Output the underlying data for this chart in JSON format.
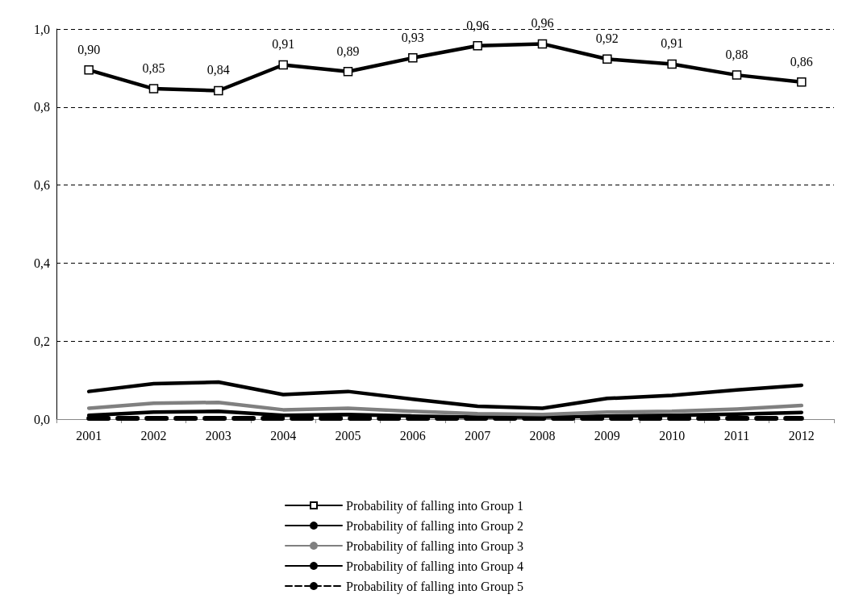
{
  "chart_data": {
    "type": "line",
    "categories": [
      "2001",
      "2002",
      "2003",
      "2004",
      "2005",
      "2006",
      "2007",
      "2008",
      "2009",
      "2010",
      "2011",
      "2012"
    ],
    "ylim": [
      0,
      1
    ],
    "yticks": [
      {
        "value": 0,
        "label": "0,0"
      },
      {
        "value": 0.2,
        "label": "0,2"
      },
      {
        "value": 0.4,
        "label": "0,4"
      },
      {
        "value": 0.6,
        "label": "0,6"
      },
      {
        "value": 0.8,
        "label": "0,8"
      },
      {
        "value": 1,
        "label": "1,0"
      }
    ],
    "grid": "y",
    "legend": "bottom",
    "series": [
      {
        "name": "Probability of falling into Group 1",
        "color": "#000000",
        "marker": "square",
        "values": [
          0.895,
          0.847,
          0.842,
          0.908,
          0.891,
          0.926,
          0.957,
          0.962,
          0.923,
          0.91,
          0.882,
          0.864
        ],
        "value_labels": [
          "0,90",
          "0,85",
          "0,84",
          "0,91",
          "0,89",
          "0,93",
          "0,96",
          "0,96",
          "0,92",
          "0,91",
          "0,88",
          "0,86"
        ]
      },
      {
        "name": "Probability of falling into Group 2",
        "color": "#000000",
        "marker": "none",
        "values": [
          0.071,
          0.091,
          0.095,
          0.063,
          0.071,
          0.051,
          0.033,
          0.028,
          0.053,
          0.061,
          0.075,
          0.087
        ]
      },
      {
        "name": "Probability of falling into Group 3",
        "color": "#808080",
        "marker": "none",
        "values": [
          0.028,
          0.041,
          0.043,
          0.024,
          0.028,
          0.02,
          0.014,
          0.012,
          0.018,
          0.02,
          0.026,
          0.035
        ]
      },
      {
        "name": "Probability of falling into Group 4",
        "color": "#000000",
        "marker": "none",
        "values": [
          0.01,
          0.018,
          0.02,
          0.01,
          0.012,
          0.008,
          0.005,
          0.005,
          0.008,
          0.01,
          0.013,
          0.017
        ]
      },
      {
        "name": "Probability of falling into Group 5",
        "color": "#000000",
        "marker": "none",
        "line_style": "dashed",
        "values": [
          0.002,
          0.002,
          0.002,
          0.002,
          0.002,
          0.002,
          0.002,
          0.002,
          0.002,
          0.002,
          0.002,
          0.002
        ]
      }
    ]
  }
}
